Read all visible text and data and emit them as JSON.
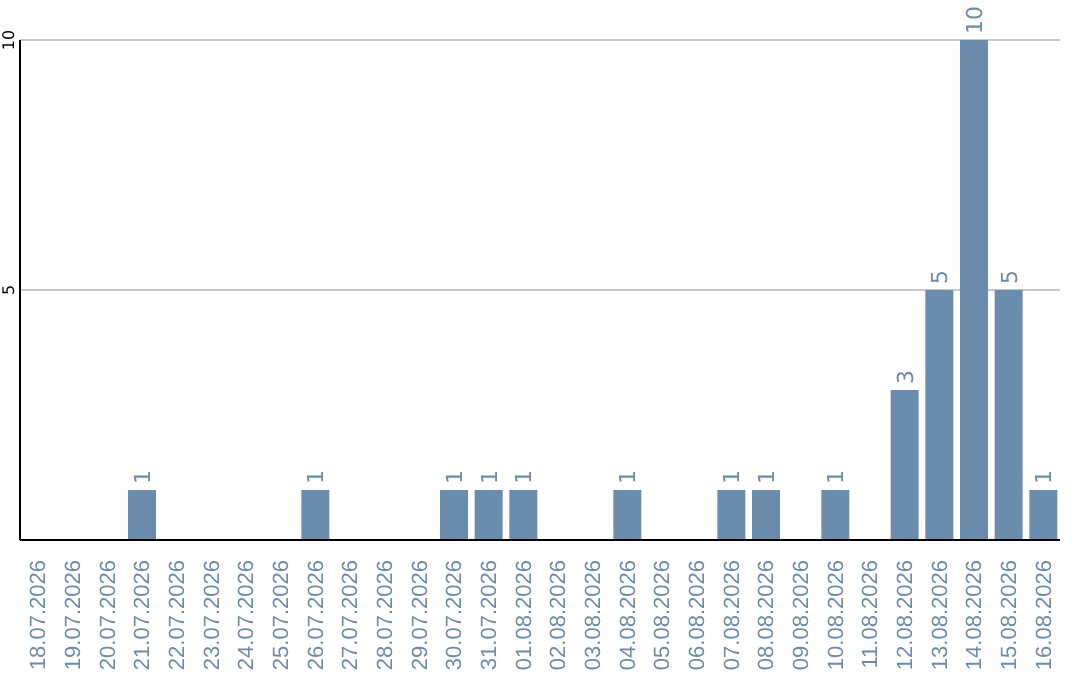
{
  "chart_data": {
    "type": "bar",
    "categories": [
      "18.07.2026",
      "19.07.2026",
      "20.07.2026",
      "21.07.2026",
      "22.07.2026",
      "23.07.2026",
      "24.07.2026",
      "25.07.2026",
      "26.07.2026",
      "27.07.2026",
      "28.07.2026",
      "29.07.2026",
      "30.07.2026",
      "31.07.2026",
      "01.08.2026",
      "02.08.2026",
      "03.08.2026",
      "04.08.2026",
      "05.08.2026",
      "06.08.2026",
      "07.08.2026",
      "08.08.2026",
      "09.08.2026",
      "10.08.2026",
      "11.08.2026",
      "12.08.2026",
      "13.08.2026",
      "14.08.2026",
      "15.08.2026",
      "16.08.2026"
    ],
    "values": [
      0,
      0,
      0,
      1,
      0,
      0,
      0,
      0,
      1,
      0,
      0,
      0,
      1,
      1,
      1,
      0,
      0,
      1,
      0,
      0,
      1,
      1,
      0,
      1,
      0,
      3,
      5,
      10,
      5,
      1
    ],
    "value_labels": [
      null,
      null,
      null,
      "1",
      null,
      null,
      null,
      null,
      "1",
      null,
      null,
      null,
      "1",
      "1",
      "1",
      null,
      null,
      "1",
      null,
      null,
      "1",
      "1",
      null,
      "1",
      null,
      "3",
      "5",
      "10",
      "5",
      "1"
    ],
    "color": "#6a8cad",
    "ylim": [
      0,
      10
    ],
    "yticks": [
      5,
      10
    ],
    "grid": "y"
  }
}
